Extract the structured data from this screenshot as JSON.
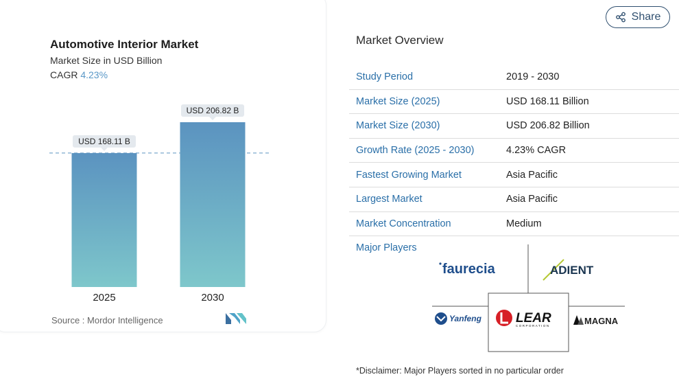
{
  "chart": {
    "title": "Automotive Interior Market",
    "subtitle": "Market Size in USD Billion",
    "cagr_label": "CAGR",
    "cagr_value": "4.23%",
    "source": "Source :  Mordor Intelligence"
  },
  "chart_data": {
    "type": "bar",
    "categories": [
      "2025",
      "2030"
    ],
    "values": [
      168.11,
      206.82
    ],
    "data_labels": [
      "USD 168.11 B",
      "USD 206.82 B"
    ],
    "title": "Automotive Interior Market",
    "subtitle": "Market Size in USD Billion",
    "xlabel": "",
    "ylabel": "",
    "ylim": [
      0,
      206.82
    ],
    "grid": false,
    "reference_line": 168.11,
    "colors": {
      "bar_top": "#5b93c0",
      "bar_bottom": "#7ec7cb",
      "reference": "#5b93c0",
      "label_bg": "#e4e9ee"
    }
  },
  "share": {
    "label": "Share"
  },
  "overview": {
    "heading": "Market Overview",
    "rows": [
      {
        "label": "Study Period",
        "value": "2019 - 2030"
      },
      {
        "label": "Market Size (2025)",
        "value": "USD 168.11 Billion"
      },
      {
        "label": "Market Size (2030)",
        "value": "USD 206.82 Billion"
      },
      {
        "label": "Growth Rate (2025 - 2030)",
        "value": "4.23% CAGR"
      },
      {
        "label": "Fastest Growing Market",
        "value": "Asia Pacific"
      },
      {
        "label": "Largest Market",
        "value": "Asia Pacific"
      },
      {
        "label": "Market Concentration",
        "value": "Medium"
      }
    ]
  },
  "players": {
    "label": "Major Players",
    "logos": {
      "faurecia": "faurecia",
      "adient": "ADIENT",
      "yanfeng": "Yanfeng",
      "lear": "LEAR",
      "lear_sub": "CORPORATION",
      "magna": "MAGNA"
    }
  },
  "disclaimer": "*Disclaimer: Major Players sorted in no particular order",
  "colors": {
    "accent": "#2a6fa8",
    "cagr": "#5a98c7"
  }
}
